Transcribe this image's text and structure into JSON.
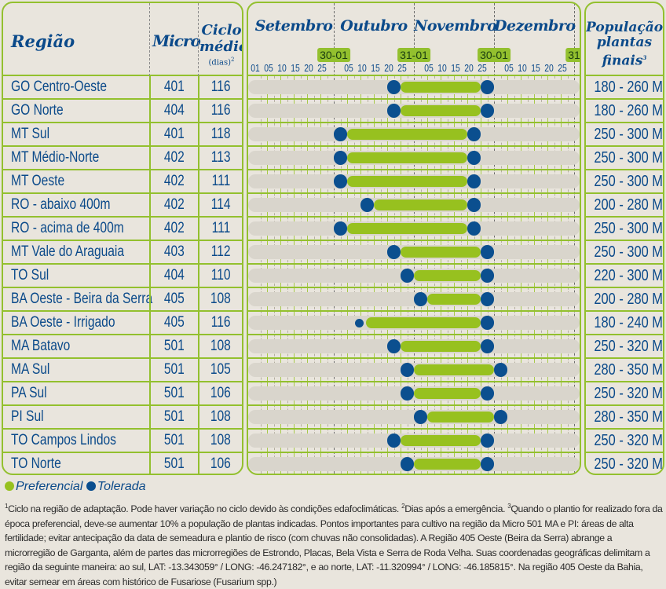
{
  "headers": {
    "region": "Região",
    "micro": "Micro",
    "cycle_line1": "Ciclo",
    "cycle_line2": "médio",
    "cycle_sup1": "1",
    "cycle_unit": "(dias)",
    "cycle_sup2": "2",
    "population_line1": "População",
    "population_line2": "plantas",
    "population_line3": "finais",
    "population_sup": "3"
  },
  "months": [
    "Setembro",
    "Outubro",
    "Novembro",
    "Dezembro"
  ],
  "boundary_badges": [
    "30-01",
    "31-01",
    "30-01",
    "31"
  ],
  "day_labels_first_month": [
    "01",
    "05",
    "10",
    "15",
    "20",
    "25"
  ],
  "day_labels_other_months": [
    "05",
    "10",
    "15",
    "20",
    "25"
  ],
  "colors": {
    "preferential": "#97c11f",
    "tolerated": "#0b4f8f",
    "border": "#93c02e",
    "text": "#0b4a8a"
  },
  "rows": [
    {
      "region": "GO Centro-Oeste",
      "micro": "401",
      "cycle": "116",
      "population": "180 - 260 Mil",
      "tolerated": [
        [
          "21/10",
          "25/10"
        ],
        [
          "26/11",
          "30/11"
        ]
      ],
      "preferential": [
        "26/10",
        "25/11"
      ]
    },
    {
      "region": "GO Norte",
      "micro": "404",
      "cycle": "116",
      "population": "180 - 260 Mil",
      "tolerated": [
        [
          "21/10",
          "25/10"
        ],
        [
          "26/11",
          "30/11"
        ]
      ],
      "preferential": [
        "26/10",
        "25/11"
      ]
    },
    {
      "region": "MT Sul",
      "micro": "401",
      "cycle": "118",
      "population": "250 - 300 Mil",
      "tolerated": [
        [
          "01/10",
          "05/10"
        ],
        [
          "21/11",
          "25/11"
        ]
      ],
      "preferential": [
        "06/10",
        "20/11"
      ]
    },
    {
      "region": "MT Médio-Norte",
      "micro": "402",
      "cycle": "113",
      "population": "250 - 300 Mil",
      "tolerated": [
        [
          "01/10",
          "05/10"
        ],
        [
          "21/11",
          "25/11"
        ]
      ],
      "preferential": [
        "06/10",
        "20/11"
      ]
    },
    {
      "region": "MT Oeste",
      "micro": "402",
      "cycle": "111",
      "population": "250 - 300 Mil",
      "tolerated": [
        [
          "01/10",
          "05/10"
        ],
        [
          "21/11",
          "25/11"
        ]
      ],
      "preferential": [
        "06/10",
        "20/11"
      ]
    },
    {
      "region": "RO - abaixo 400m",
      "micro": "402",
      "cycle": "114",
      "population": "200 - 280 Mil",
      "tolerated": [
        [
          "11/10",
          "15/10"
        ],
        [
          "21/11",
          "25/11"
        ]
      ],
      "preferential": [
        "16/10",
        "20/11"
      ]
    },
    {
      "region": "RO - acima de 400m",
      "micro": "402",
      "cycle": "111",
      "population": "250 - 300 Mil",
      "tolerated": [
        [
          "01/10",
          "05/10"
        ],
        [
          "21/11",
          "25/11"
        ]
      ],
      "preferential": [
        "06/10",
        "20/11"
      ]
    },
    {
      "region": "MT Vale do Araguaia",
      "micro": "403",
      "cycle": "112",
      "population": "250 - 300 Mil",
      "tolerated": [
        [
          "21/10",
          "25/10"
        ],
        [
          "26/11",
          "30/11"
        ]
      ],
      "preferential": [
        "26/10",
        "25/11"
      ]
    },
    {
      "region": "TO Sul",
      "micro": "404",
      "cycle": "110",
      "population": "220 - 300 Mil",
      "tolerated": [
        [
          "26/10",
          "31/10"
        ],
        [
          "26/11",
          "30/11"
        ]
      ],
      "preferential": [
        "01/11",
        "25/11"
      ]
    },
    {
      "region": "BA Oeste - Beira da Serra",
      "micro": "405",
      "cycle": "108",
      "population": "200 - 280 Mil",
      "tolerated": [
        [
          "01/11",
          "05/11"
        ],
        [
          "26/11",
          "30/11"
        ]
      ],
      "preferential": [
        "06/11",
        "25/11"
      ]
    },
    {
      "region": "BA Oeste - Irrigado",
      "micro": "405",
      "cycle": "116",
      "population": "180 - 240 Mil",
      "tolerated": [
        [
          "10/10",
          "12/10"
        ],
        [
          "26/11",
          "30/11"
        ]
      ],
      "preferential": [
        "13/10",
        "25/11"
      ]
    },
    {
      "region": "MA Batavo",
      "micro": "501",
      "cycle": "108",
      "population": "250 - 320 Mil",
      "tolerated": [
        [
          "21/10",
          "25/10"
        ],
        [
          "26/11",
          "30/11"
        ]
      ],
      "preferential": [
        "26/10",
        "25/11"
      ]
    },
    {
      "region": "MA Sul",
      "micro": "501",
      "cycle": "105",
      "population": "280 - 350 Mil",
      "tolerated": [
        [
          "26/10",
          "31/10"
        ],
        [
          "01/12",
          "05/12"
        ]
      ],
      "preferential": [
        "01/11",
        "30/11"
      ]
    },
    {
      "region": "PA Sul",
      "micro": "501",
      "cycle": "106",
      "population": "250 - 320 Mil",
      "tolerated": [
        [
          "26/10",
          "31/10"
        ],
        [
          "26/11",
          "30/11"
        ]
      ],
      "preferential": [
        "01/11",
        "25/11"
      ]
    },
    {
      "region": "PI Sul",
      "micro": "501",
      "cycle": "108",
      "population": "280 - 350 Mil",
      "tolerated": [
        [
          "01/11",
          "05/11"
        ],
        [
          "01/12",
          "05/12"
        ]
      ],
      "preferential": [
        "06/11",
        "30/11"
      ]
    },
    {
      "region": "TO Campos Lindos",
      "micro": "501",
      "cycle": "108",
      "population": "250 - 320 Mil",
      "tolerated": [
        [
          "21/10",
          "25/10"
        ],
        [
          "26/11",
          "30/11"
        ]
      ],
      "preferential": [
        "26/10",
        "25/11"
      ]
    },
    {
      "region": "TO Norte",
      "micro": "501",
      "cycle": "106",
      "population": "250 - 320 Mil",
      "tolerated": [
        [
          "26/10",
          "31/10"
        ],
        [
          "26/11",
          "30/11"
        ]
      ],
      "preferential": [
        "01/11",
        "25/11"
      ]
    }
  ],
  "legend": {
    "preferential": "Preferencial",
    "tolerated": "Tolerada"
  },
  "footnote": {
    "sup1": "1",
    "text1": "Ciclo na região de adaptação. Pode haver variação no ciclo devido às condições edafoclimáticas. ",
    "sup2": "2",
    "text2": "Dias após a emergência. ",
    "sup3": "3",
    "text3": "Quando o plantio for realizado fora da época preferencial, deve-se aumentar 10% a população de plantas indicadas. Pontos importantes para cultivo na região da Micro 501 MA e PI: áreas de alta fertilidade; evitar antecipação da data de semeadura e plantio de risco (com chuvas não consolidadas). A Região 405 Oeste (Beira da Serra) abrange a microrregião de Garganta, além de partes das microrregiões de Estrondo, Placas, Bela Vista e Serra de Roda Velha. Suas coordenadas geográficas delimitam a região da seguinte maneira: ao sul, LAT: -13.343059° / LONG: -46.247182°, e ao norte, LAT: -11.320994° / LONG: -46.185815°.  Na região 405 Oeste da Bahia, evitar semear em áreas com histórico de Fusariose (Fusarium spp.)"
  }
}
